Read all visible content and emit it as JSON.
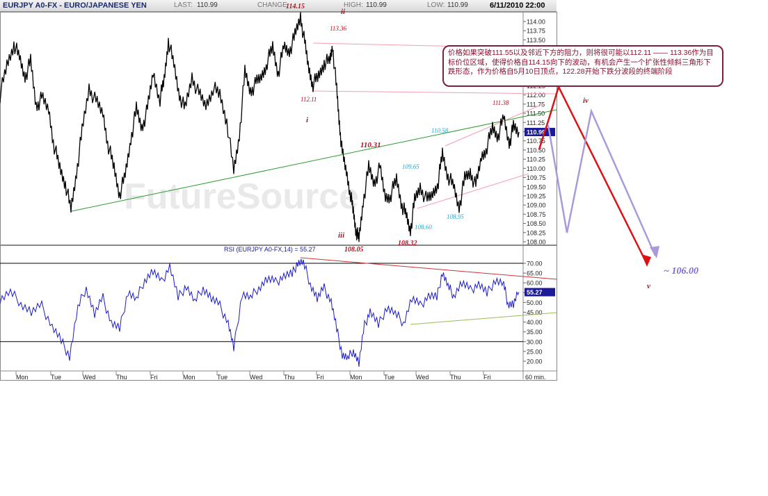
{
  "header": {
    "symbol": "EURJPY A0-FX - EURO/JAPANESE YEN",
    "last_label": "LAST:",
    "last_value": "110.99",
    "change_label": "CHANGE",
    "high_label": "HIGH:",
    "high_value": "110.99",
    "low_label": "LOW:",
    "low_value": "110.99",
    "datetime": "6/11/2010 22:00"
  },
  "watermark": "FutureSource",
  "annotation_note": "价格如果突破111.55以及邻近下方的阻力，则将很可能以112.11 —— 113.36作为目标价位区域，使得价格自114.15向下的波动，有机会产生一个扩张性倾斜三角形下跌形态，作为价格自5月10日顶点，122.28开始下跌分波段的终端阶段",
  "colors": {
    "price": "#000000",
    "rsi": "#1a1acc",
    "trend_green": "#2a9a2a",
    "channel_pink": "#f2a0b0",
    "rsi_resist": "#cc3333",
    "rsi_support": "#99bb55",
    "projection_red": "#dd1111",
    "projection_lavender": "#aa99dd",
    "wave_label": "#b01020",
    "cyan_label": "#22aacc"
  },
  "chart_data": [
    {
      "type": "line",
      "title": "EURJPY A0-FX - EURO/JAPANESE YEN",
      "timeframe": "60 min.",
      "x_ticks": [
        "Mon",
        "Tue",
        "Wed",
        "Thu",
        "Fri",
        "Mon",
        "Tue",
        "Wed",
        "Thu",
        "Fri",
        "Mon",
        "Tue",
        "Wed",
        "Thu",
        "Fri"
      ],
      "ylim": [
        108.0,
        114.1
      ],
      "y_ticks": [
        108.0,
        108.25,
        108.5,
        108.75,
        109.0,
        109.25,
        109.5,
        109.75,
        110.0,
        110.25,
        110.5,
        110.75,
        111.0,
        111.25,
        111.5,
        111.75,
        112.0,
        112.25,
        112.5,
        112.75,
        113.0,
        113.25,
        113.5,
        113.75,
        114.0
      ],
      "last_price_label": "110.99",
      "series": [
        {
          "name": "EURJPY",
          "points": [
            [
              0,
              112.0
            ],
            [
              10,
              112.8
            ],
            [
              20,
              113.4
            ],
            [
              28,
              113.0
            ],
            [
              36,
              112.5
            ],
            [
              44,
              112.9
            ],
            [
              52,
              111.7
            ],
            [
              60,
              111.9
            ],
            [
              70,
              111.6
            ],
            [
              78,
              110.6
            ],
            [
              86,
              110.0
            ],
            [
              94,
              109.6
            ],
            [
              102,
              108.85
            ],
            [
              110,
              109.9
            ],
            [
              118,
              111.0
            ],
            [
              128,
              112.2
            ],
            [
              138,
              111.8
            ],
            [
              148,
              111.5
            ],
            [
              156,
              110.6
            ],
            [
              164,
              110.0
            ],
            [
              172,
              109.3
            ],
            [
              180,
              109.8
            ],
            [
              188,
              110.8
            ],
            [
              196,
              111.6
            ],
            [
              204,
              111.1
            ],
            [
              212,
              111.6
            ],
            [
              220,
              112.6
            ],
            [
              230,
              111.9
            ],
            [
              236,
              112.4
            ],
            [
              242,
              113.5
            ],
            [
              250,
              112.8
            ],
            [
              258,
              112.0
            ],
            [
              266,
              111.6
            ],
            [
              276,
              112.5
            ],
            [
              286,
              112.0
            ],
            [
              296,
              111.7
            ],
            [
              306,
              112.2
            ],
            [
              316,
              112.0
            ],
            [
              326,
              111.3
            ],
            [
              336,
              109.9
            ],
            [
              344,
              110.9
            ],
            [
              352,
              112.6
            ],
            [
              360,
              112.1
            ],
            [
              368,
              112.3
            ],
            [
              376,
              112.5
            ],
            [
              384,
              112.9
            ],
            [
              392,
              113.3
            ],
            [
              400,
              112.6
            ],
            [
              408,
              113.3
            ],
            [
              416,
              113.2
            ],
            [
              424,
              113.6
            ],
            [
              432,
              114.15
            ],
            [
              438,
              113.4
            ],
            [
              444,
              112.7
            ],
            [
              450,
              112.3
            ],
            [
              458,
              112.5
            ],
            [
              466,
              112.9
            ],
            [
              474,
              112.9
            ],
            [
              478,
              113.36
            ],
            [
              484,
              112.11
            ],
            [
              488,
              111.2
            ],
            [
              492,
              110.4
            ],
            [
              498,
              109.9
            ],
            [
              504,
              109.3
            ],
            [
              508,
              108.8
            ],
            [
              512,
              108.3
            ],
            [
              516,
              108.05
            ],
            [
              522,
              109.1
            ],
            [
              530,
              110.0
            ],
            [
              538,
              109.6
            ],
            [
              546,
              110.0
            ],
            [
              554,
              109.2
            ],
            [
              562,
              109.3
            ],
            [
              570,
              109.7
            ],
            [
              578,
              109.0
            ],
            [
              584,
              108.7
            ],
            [
              590,
              108.32
            ],
            [
              596,
              109.1
            ],
            [
              604,
              109.5
            ],
            [
              614,
              109.1
            ],
            [
              622,
              109.3
            ],
            [
              630,
              109.65
            ],
            [
              636,
              110.4
            ],
            [
              644,
              109.8
            ],
            [
              652,
              109.5
            ],
            [
              660,
              108.95
            ],
            [
              668,
              109.7
            ],
            [
              676,
              109.9
            ],
            [
              684,
              109.5
            ],
            [
              692,
              110.3
            ],
            [
              700,
              110.6
            ],
            [
              708,
              111.1
            ],
            [
              716,
              110.9
            ],
            [
              724,
              111.38
            ],
            [
              732,
              110.7
            ],
            [
              738,
              111.1
            ],
            [
              746,
              110.99
            ]
          ]
        }
      ]
    },
    {
      "type": "line",
      "title": "RSI (EURJPY A0-FX,14) = 55.27",
      "ylim": [
        18,
        72
      ],
      "y_ticks": [
        20.0,
        25.0,
        30.0,
        35.0,
        40.0,
        45.0,
        50.0,
        55.0,
        60.0,
        65.0,
        70.0
      ],
      "last_value_label": "55.27",
      "series": [
        {
          "name": "RSI",
          "points": [
            [
              0,
              52
            ],
            [
              15,
              55
            ],
            [
              30,
              50
            ],
            [
              45,
              45
            ],
            [
              60,
              48
            ],
            [
              75,
              38
            ],
            [
              88,
              30
            ],
            [
              100,
              23
            ],
            [
              112,
              47
            ],
            [
              124,
              58
            ],
            [
              136,
              44
            ],
            [
              148,
              52
            ],
            [
              160,
              40
            ],
            [
              172,
              36
            ],
            [
              184,
              56
            ],
            [
              196,
              51
            ],
            [
              208,
              62
            ],
            [
              220,
              66
            ],
            [
              232,
              60
            ],
            [
              244,
              69
            ],
            [
              256,
              52
            ],
            [
              268,
              59
            ],
            [
              280,
              50
            ],
            [
              292,
              58
            ],
            [
              304,
              52
            ],
            [
              316,
              48
            ],
            [
              328,
              40
            ],
            [
              336,
              26
            ],
            [
              348,
              55
            ],
            [
              360,
              52
            ],
            [
              372,
              58
            ],
            [
              384,
              62
            ],
            [
              396,
              60
            ],
            [
              408,
              64
            ],
            [
              420,
              64
            ],
            [
              428,
              71
            ],
            [
              436,
              70
            ],
            [
              446,
              60
            ],
            [
              456,
              52
            ],
            [
              466,
              57
            ],
            [
              476,
              51
            ],
            [
              484,
              36
            ],
            [
              492,
              24
            ],
            [
              500,
              21
            ],
            [
              508,
              26
            ],
            [
              516,
              19
            ],
            [
              524,
              38
            ],
            [
              532,
              46
            ],
            [
              544,
              38
            ],
            [
              556,
              48
            ],
            [
              568,
              44
            ],
            [
              580,
              40
            ],
            [
              592,
              52
            ],
            [
              604,
              48
            ],
            [
              616,
              54
            ],
            [
              628,
              52
            ],
            [
              636,
              66
            ],
            [
              644,
              58
            ],
            [
              652,
              54
            ],
            [
              664,
              60
            ],
            [
              676,
              56
            ],
            [
              688,
              60
            ],
            [
              700,
              54
            ],
            [
              712,
              62
            ],
            [
              724,
              59
            ],
            [
              730,
              50
            ],
            [
              738,
              49
            ],
            [
              746,
              55.27
            ]
          ]
        }
      ]
    }
  ],
  "labels": {
    "wave_ii": "ii",
    "wave_i": "i",
    "wave_iii": "iii",
    "wave_iv": "iv",
    "wave_v": "v",
    "p_114_15": "114.15",
    "p_113_36": "113.36",
    "p_112_11": "112.11",
    "p_110_31": "110.31",
    "p_108_05": "108.05",
    "p_108_32": "108.32",
    "p_111_38": "111.38",
    "c_110_58": "110.58",
    "c_109_65": "109.65",
    "c_108_60": "108.60",
    "c_108_95": "108.95",
    "target": "~ 106.00",
    "timeframe": "60 min."
  }
}
